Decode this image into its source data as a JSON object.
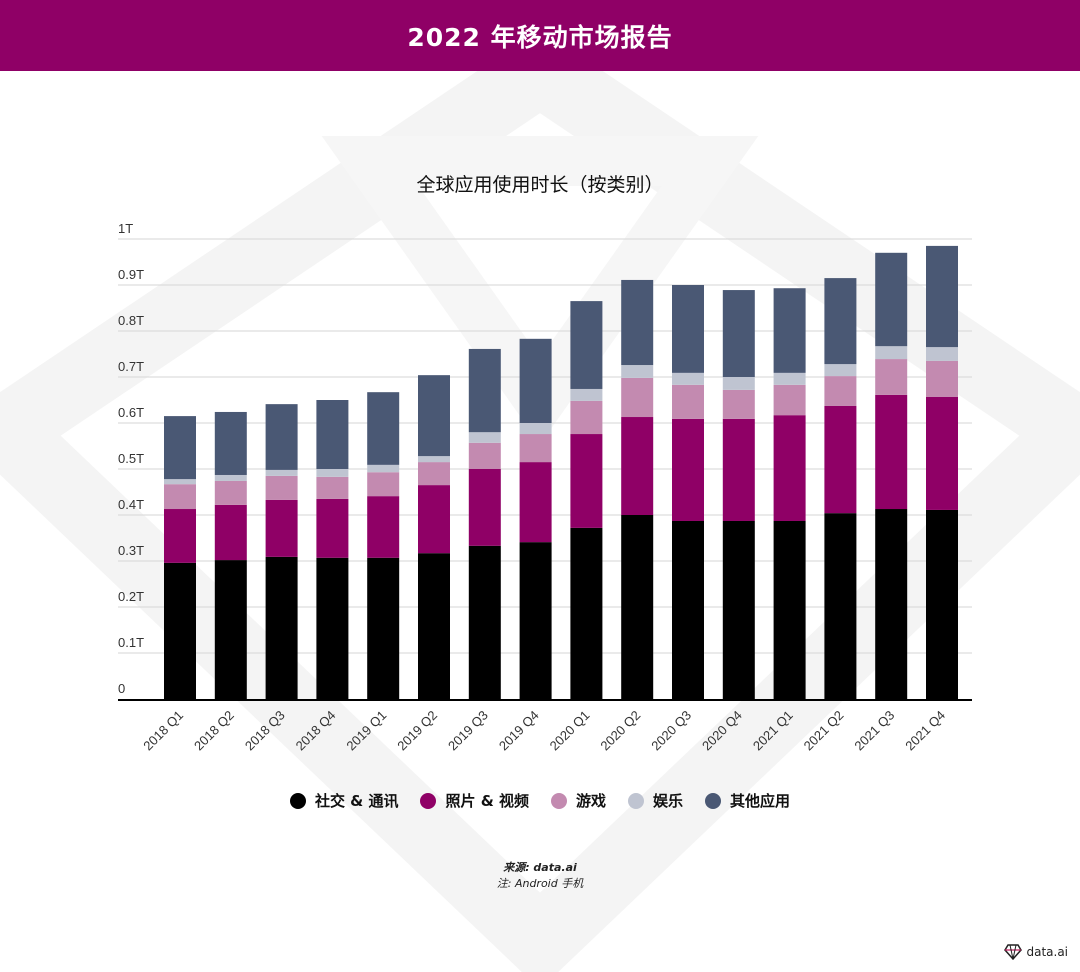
{
  "header": {
    "title": "2022 年移动市场报告"
  },
  "chart_data": {
    "type": "bar",
    "stacked": true,
    "title": "全球应用使用时长（按类别）",
    "xlabel": "",
    "ylabel": "",
    "ylim": [
      0,
      1
    ],
    "yticks": [
      0,
      0.1,
      0.2,
      0.3,
      0.4,
      0.5,
      0.6,
      0.7,
      0.8,
      0.9,
      1
    ],
    "ytick_labels": [
      "0",
      "0.1T",
      "0.2T",
      "0.3T",
      "0.4T",
      "0.5T",
      "0.6T",
      "0.7T",
      "0.8T",
      "0.9T",
      "1T"
    ],
    "grid": true,
    "legend_position": "bottom",
    "categories": [
      "2018 Q1",
      "2018 Q2",
      "2018 Q3",
      "2018 Q4",
      "2019 Q1",
      "2019 Q2",
      "2019 Q3",
      "2019 Q4",
      "2020 Q1",
      "2020 Q2",
      "2020 Q3",
      "2020 Q4",
      "2021 Q1",
      "2021 Q2",
      "2021 Q3",
      "2021 Q4"
    ],
    "series": [
      {
        "name": "社交 & 通讯",
        "color": "#000000",
        "values": [
          0.296,
          0.302,
          0.309,
          0.307,
          0.307,
          0.317,
          0.333,
          0.341,
          0.372,
          0.4,
          0.387,
          0.387,
          0.387,
          0.404,
          0.413,
          0.411
        ]
      },
      {
        "name": "照片 & 视频",
        "color": "#8f0066",
        "values": [
          0.117,
          0.12,
          0.124,
          0.128,
          0.134,
          0.148,
          0.167,
          0.174,
          0.204,
          0.213,
          0.222,
          0.222,
          0.23,
          0.233,
          0.248,
          0.246
        ]
      },
      {
        "name": "游戏",
        "color": "#c38ab0",
        "values": [
          0.054,
          0.052,
          0.052,
          0.048,
          0.052,
          0.05,
          0.057,
          0.061,
          0.072,
          0.085,
          0.074,
          0.063,
          0.066,
          0.065,
          0.078,
          0.078
        ]
      },
      {
        "name": "娱乐",
        "color": "#bfc4d1",
        "values": [
          0.011,
          0.013,
          0.013,
          0.017,
          0.016,
          0.013,
          0.023,
          0.024,
          0.026,
          0.028,
          0.026,
          0.028,
          0.026,
          0.026,
          0.028,
          0.03
        ]
      },
      {
        "name": "其他应用",
        "color": "#4a5874",
        "values": [
          0.137,
          0.137,
          0.143,
          0.15,
          0.158,
          0.176,
          0.181,
          0.183,
          0.191,
          0.185,
          0.191,
          0.189,
          0.184,
          0.187,
          0.203,
          0.22
        ]
      }
    ]
  },
  "footer": {
    "source": "来源: data.ai",
    "note": "注: Android  手机"
  },
  "logo": {
    "text": "data.ai"
  }
}
